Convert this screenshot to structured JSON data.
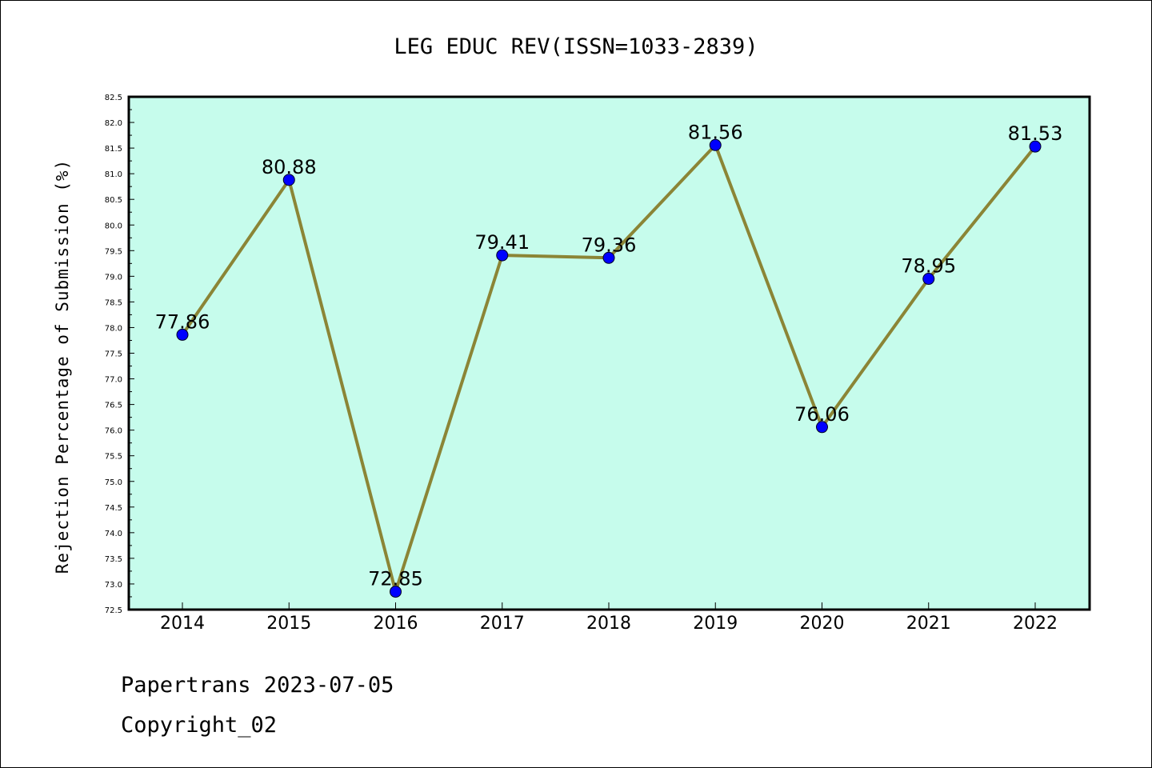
{
  "chart_data": {
    "type": "line",
    "title": "LEG EDUC REV(ISSN=1033-2839)",
    "ylabel": "Rejection Percentage of Submission (%)",
    "xlabel": "",
    "categories": [
      "2014",
      "2015",
      "2016",
      "2017",
      "2018",
      "2019",
      "2020",
      "2021",
      "2022"
    ],
    "series": [
      {
        "values": [
          77.86,
          80.88,
          72.85,
          79.41,
          79.36,
          81.56,
          76.06,
          78.95,
          81.53
        ],
        "data_labels": [
          "77.86",
          "80.88",
          "72.85",
          "79.41",
          "79.36",
          "81.56",
          "76.06",
          "78.95",
          "81.53"
        ]
      }
    ],
    "ylim": [
      72.5,
      82.5
    ],
    "yticks": [
      "72.5",
      "73.0",
      "73.5",
      "74.0",
      "74.5",
      "75.0",
      "75.5",
      "76.0",
      "76.5",
      "77.0",
      "77.5",
      "78.0",
      "78.5",
      "79.0",
      "79.5",
      "80.0",
      "80.5",
      "81.0",
      "81.5",
      "82.0",
      "82.5"
    ],
    "grid": false,
    "colors": {
      "plot_background": "#c6fcec",
      "line": "#8b8536",
      "marker": "#0000ff"
    }
  },
  "footer": {
    "line1": "Papertrans 2023-07-05",
    "line2": "Copyright_02"
  }
}
